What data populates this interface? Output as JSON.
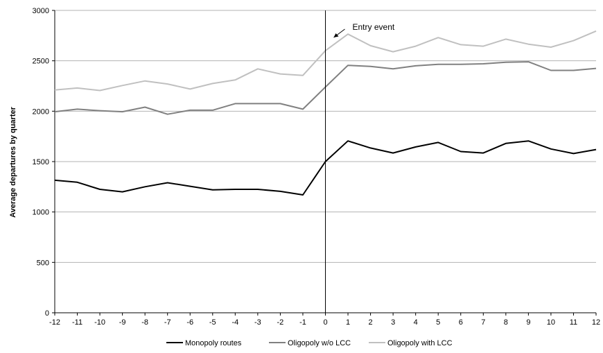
{
  "chart_data": {
    "type": "line",
    "title": "",
    "xlabel": "",
    "ylabel": "Average departures by quarter",
    "x": [
      -12,
      -11,
      -10,
      -9,
      -8,
      -7,
      -6,
      -5,
      -4,
      -3,
      -2,
      -1,
      0,
      1,
      2,
      3,
      4,
      5,
      6,
      7,
      8,
      9,
      10,
      11,
      12
    ],
    "xlim": [
      -12,
      12
    ],
    "ylim": [
      0,
      3000
    ],
    "yticks": [
      0,
      500,
      1000,
      1500,
      2000,
      2500,
      3000
    ],
    "grid": "horizontal",
    "legend_position": "bottom",
    "series": [
      {
        "name": "Monopoly routes",
        "color": "#000000",
        "values": [
          1315,
          1295,
          1225,
          1200,
          1250,
          1290,
          1255,
          1220,
          1225,
          1225,
          1205,
          1170,
          1500,
          1705,
          1635,
          1585,
          1645,
          1690,
          1600,
          1585,
          1680,
          1705,
          1625,
          1580,
          1620
        ]
      },
      {
        "name": "Oligopoly w/o LCC",
        "color": "#808080",
        "values": [
          1995,
          2020,
          2005,
          1995,
          2040,
          1970,
          2010,
          2010,
          2075,
          2075,
          2075,
          2020,
          2240,
          2455,
          2445,
          2420,
          2450,
          2465,
          2465,
          2470,
          2485,
          2490,
          2405,
          2405,
          2425
        ]
      },
      {
        "name": "Oligopoly with LCC",
        "color": "#c0c0c0",
        "values": [
          2210,
          2230,
          2205,
          2255,
          2300,
          2270,
          2220,
          2275,
          2310,
          2420,
          2370,
          2355,
          2600,
          2765,
          2650,
          2590,
          2645,
          2730,
          2660,
          2645,
          2715,
          2665,
          2635,
          2700,
          2795
        ]
      }
    ],
    "annotations": [
      {
        "text": "Entry event",
        "x": 0
      }
    ]
  }
}
